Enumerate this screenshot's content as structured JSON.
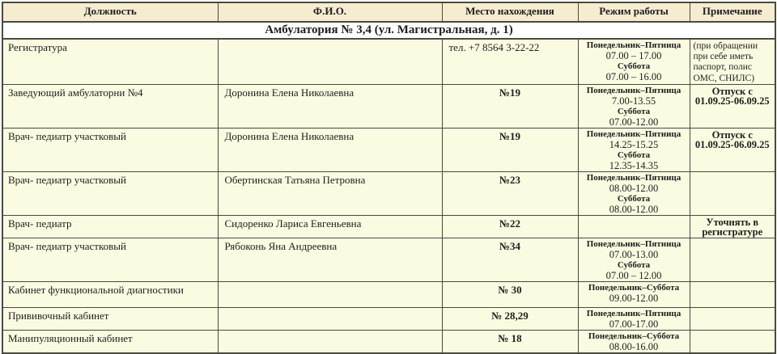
{
  "colors": {
    "border": "#4a4a40",
    "header_bg": "#f6ecd0",
    "body_bg": "#fbfbe2",
    "banner_bg": "#ffffff",
    "text": "#1e1e1e"
  },
  "table": {
    "banner": "Амбулатория № 3,4 (ул. Магистральная, д. 1)",
    "columns": [
      "Должность",
      "Ф.И.О.",
      "Место нахождения",
      "Режим работы",
      "Примечание"
    ],
    "rows": [
      {
        "position": "Регистратура",
        "fio": "",
        "location": "тел. +7 8564 3-22-22",
        "location_bold": false,
        "schedule": [
          {
            "t": "Понедельник–Пятница",
            "b": true
          },
          {
            "t": "07.00 – 17.00",
            "b": false
          },
          {
            "t": "Суббота",
            "b": true
          },
          {
            "t": "07.00 – 16.00",
            "b": false
          }
        ],
        "note": "(при обращении при себе иметь паспорт, полис ОМС, СНИЛС)",
        "note_bold": false
      },
      {
        "position": "Заведующий амбулаторни №4",
        "fio": "Доронина Елена Николаевна",
        "location": "№19",
        "location_bold": true,
        "schedule": [
          {
            "t": "Понедельник–Пятница",
            "b": true
          },
          {
            "t": "7.00-13.55",
            "b": false
          },
          {
            "t": "Суббота",
            "b": true
          },
          {
            "t": "07.00-12.00",
            "b": false
          }
        ],
        "note": "Отпуск с 01.09.25-06.09.25",
        "note_bold": true
      },
      {
        "position": "Врач- педиатр участковый",
        "fio": "Доронина Елена Николаевна",
        "location": "№19",
        "location_bold": true,
        "schedule": [
          {
            "t": "Понедельник–Пятница",
            "b": true
          },
          {
            "t": "14.25-15.25",
            "b": false
          },
          {
            "t": "Суббота",
            "b": true
          },
          {
            "t": "12.35-14.35",
            "b": false
          }
        ],
        "note": "Отпуск с 01.09.25-06.09.25",
        "note_bold": true
      },
      {
        "position": "Врач- педиатр участковый",
        "fio": "Обертинская Татьяна Петровна",
        "location": "№23",
        "location_bold": true,
        "schedule": [
          {
            "t": "Понедельник–Пятница",
            "b": true
          },
          {
            "t": "08.00-12.00",
            "b": false
          },
          {
            "t": "Суббота",
            "b": true
          },
          {
            "t": "08.00-12.00",
            "b": false
          }
        ],
        "note": "",
        "note_bold": true
      },
      {
        "position": "Врач- педиатр",
        "fio": "Сидоренко Лариса Евгеньевна",
        "location": "№22",
        "location_bold": true,
        "schedule": [],
        "note": "Уточнять в регистратуре",
        "note_bold": true
      },
      {
        "position": "Врач- педиатр участковый",
        "fio": "Рябоконь Яна Андреевна",
        "location": "№34",
        "location_bold": true,
        "schedule": [
          {
            "t": "Понедельник–Пятница",
            "b": true
          },
          {
            "t": "07.00-13.00",
            "b": false
          },
          {
            "t": "Суббота",
            "b": true
          },
          {
            "t": "07.00 – 12.00",
            "b": false
          }
        ],
        "note": "",
        "note_bold": true
      },
      {
        "position": "Кабинет функциональной диагностики",
        "fio": "",
        "location": "№ 30",
        "location_bold": true,
        "schedule": [
          {
            "t": "Понедельник–Суббота",
            "b": true
          },
          {
            "t": "09.00-12.00",
            "b": false
          }
        ],
        "note": "",
        "note_bold": true
      },
      {
        "position": "Прививочный кабинет",
        "fio": "",
        "location": "№ 28,29",
        "location_bold": true,
        "schedule": [
          {
            "t": "Понедельник–Пятница",
            "b": true
          },
          {
            "t": "07.00-17.00",
            "b": false
          }
        ],
        "note": "",
        "note_bold": true
      },
      {
        "position": "Манипуляционный кабинет",
        "fio": "",
        "location": "№ 18",
        "location_bold": true,
        "schedule": [
          {
            "t": "Понедельник–Суббота",
            "b": true
          },
          {
            "t": "08.00-16.00",
            "b": false
          }
        ],
        "note": "",
        "note_bold": true
      }
    ]
  }
}
